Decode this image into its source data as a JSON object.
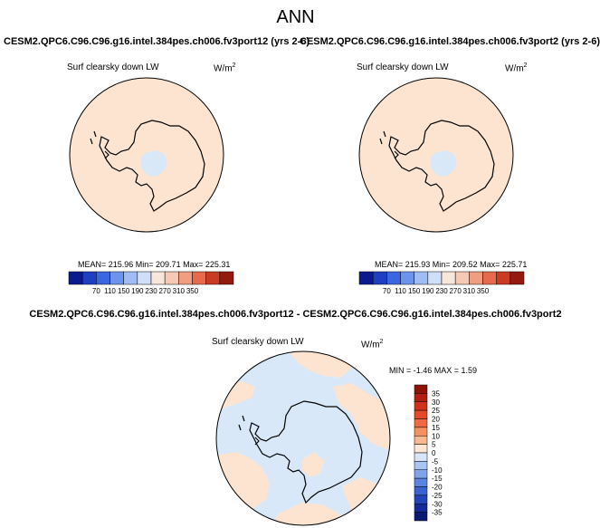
{
  "title": "ANN",
  "panels": [
    {
      "case": "CESM2.QPC6.C96.C96.g16.intel.384pes.ch006.fv3port12 (yrs 2-6)",
      "variable": "Surf clearsky down LW",
      "units_base": "W/m",
      "units_exp": "2",
      "stats": "MEAN= 215.96   Min= 209.71   Max= 225.31"
    },
    {
      "case": "CESM2.QPC6.C96.C96.g16.intel.384pes.ch006.fv3port2 (yrs 2-6)",
      "variable": "Surf clearsky down LW",
      "units_base": "W/m",
      "units_exp": "2",
      "stats": "MEAN= 215.93   Min= 209.52   Max= 225.71"
    }
  ],
  "diff": {
    "title": "CESM2.QPC6.C96.C96.g16.intel.384pes.ch006.fv3port12 - CESM2.QPC6.C96.C96.g16.intel.384pes.ch006.fv3port2",
    "variable": "Surf clearsky down LW",
    "units_base": "W/m",
    "units_exp": "2",
    "stats": "MIN =  -1.46  MAX =   1.59"
  },
  "colorbar_abs": {
    "labels": [
      "70",
      "110",
      "150",
      "190",
      "230",
      "270",
      "310",
      "350"
    ],
    "colors": [
      "#0b1a8c",
      "#1f3fc2",
      "#3a66e0",
      "#6c94ec",
      "#9fbdf4",
      "#cfdff8",
      "#f7e6da",
      "#f6c9b4",
      "#f19d80",
      "#e66a4c",
      "#c83b24",
      "#941a10"
    ]
  },
  "colorbar_diff": {
    "labels": [
      "35",
      "30",
      "25",
      "20",
      "15",
      "10",
      "5",
      "0",
      "-5",
      "-10",
      "-15",
      "-20",
      "-25",
      "-30",
      "-35"
    ],
    "colors": [
      "#8c1206",
      "#b01f10",
      "#d0311a",
      "#e24a28",
      "#ef6a40",
      "#f5915f",
      "#f8b890",
      "#fde6d2",
      "#d6e6f8",
      "#a8c6f2",
      "#7fa4ea",
      "#5a84e0",
      "#3b63d0",
      "#2344b8",
      "#142a98",
      "#0a1a70"
    ]
  },
  "map_colors": {
    "warm": "#fde4d0",
    "cool": "#d8e8f8",
    "coast": "#000000"
  }
}
